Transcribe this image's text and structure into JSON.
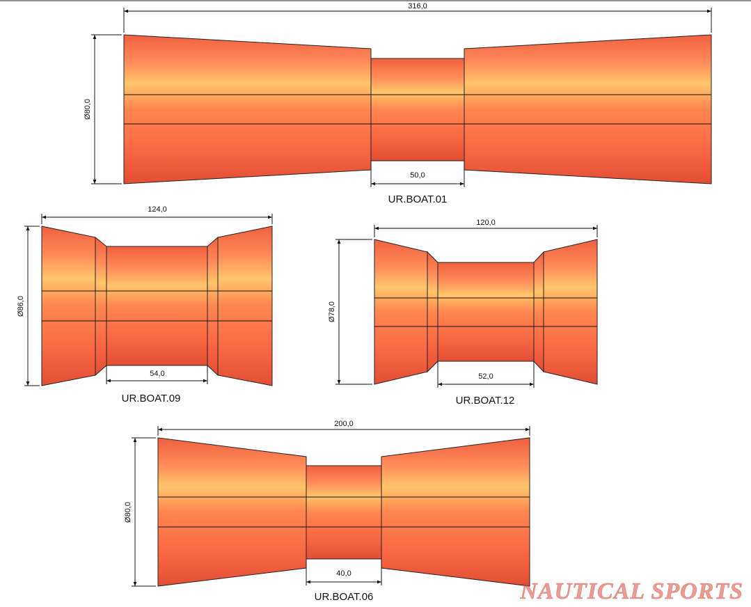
{
  "rollers": [
    {
      "name": "UR.BOAT.01",
      "length": "316,0",
      "diameter": "Ø80,0",
      "middle": "50,0"
    },
    {
      "name": "UR.BOAT.09",
      "length": "124,0",
      "diameter": "Ø86,0",
      "middle": "54,0"
    },
    {
      "name": "UR.BOAT.12",
      "length": "120,0",
      "diameter": "Ø78,0",
      "middle": "52,0"
    },
    {
      "name": "UR.BOAT.06",
      "length": "200,0",
      "diameter": "Ø80,0",
      "middle": "40,0"
    }
  ],
  "watermark": "NAUTICAL SPORTS"
}
